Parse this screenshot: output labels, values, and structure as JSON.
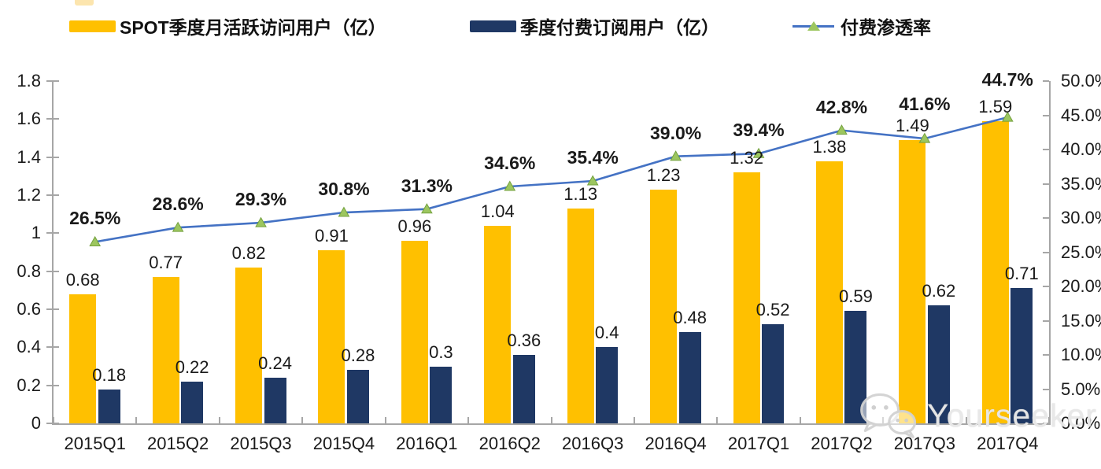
{
  "watermark": {
    "text": "Yourseeker",
    "icon": "wechat-icon"
  },
  "chart_data": {
    "type": "combo-bar-line",
    "title": "",
    "categories": [
      "2015Q1",
      "2015Q2",
      "2015Q3",
      "2015Q4",
      "2016Q1",
      "2016Q2",
      "2016Q3",
      "2016Q4",
      "2017Q1",
      "2017Q2",
      "2017Q3",
      "2017Q4"
    ],
    "series": [
      {
        "name": "SPOT季度月活跃访问用户（亿）",
        "type": "bar",
        "axis": "left",
        "color": "#FFC000",
        "values": [
          0.68,
          0.77,
          0.82,
          0.91,
          0.96,
          1.04,
          1.13,
          1.23,
          1.32,
          1.38,
          1.49,
          1.59
        ],
        "labels": [
          "0.68",
          "0.77",
          "0.82",
          "0.91",
          "0.96",
          "1.04",
          "1.13",
          "1.23",
          "1.32",
          "1.38",
          "1.49",
          "1.59"
        ]
      },
      {
        "name": "季度付费订阅用户（亿）",
        "type": "bar",
        "axis": "left",
        "color": "#1F3864",
        "values": [
          0.18,
          0.22,
          0.24,
          0.28,
          0.3,
          0.36,
          0.4,
          0.48,
          0.52,
          0.59,
          0.62,
          0.71
        ],
        "labels": [
          "0.18",
          "0.22",
          "0.24",
          "0.28",
          "0.3",
          "0.36",
          "0.4",
          "0.48",
          "0.52",
          "0.59",
          "0.62",
          "0.71"
        ]
      },
      {
        "name": "付费渗透率",
        "type": "line",
        "axis": "right",
        "color": "#4472C4",
        "marker": "triangle-up",
        "marker_color": "#9CC65F",
        "marker_edge_color": "#74A13F",
        "values": [
          26.5,
          28.6,
          29.3,
          30.8,
          31.3,
          34.6,
          35.4,
          39.0,
          39.4,
          42.8,
          41.6,
          44.7
        ],
        "labels": [
          "26.5%",
          "28.6%",
          "29.3%",
          "30.8%",
          "31.3%",
          "34.6%",
          "35.4%",
          "39.0%",
          "39.4%",
          "42.8%",
          "41.6%",
          "44.7%"
        ]
      }
    ],
    "left_axis": {
      "min": 0,
      "max": 1.8,
      "step": 0.2,
      "tick_labels": [
        "0",
        "0.2",
        "0.4",
        "0.6",
        "0.8",
        "1",
        "1.2",
        "1.4",
        "1.6",
        "1.8"
      ]
    },
    "right_axis": {
      "min": 0,
      "max": 50,
      "step": 5,
      "tick_labels": [
        "0.0%",
        "5.0%",
        "10.0%",
        "15.0%",
        "20.0%",
        "25.0%",
        "30.0%",
        "35.0%",
        "40.0%",
        "45.0%",
        "50.0%"
      ]
    },
    "grid": false,
    "legend_position": "top",
    "axis_color": "#A6A6A6",
    "text_color": "#1A1A1A"
  }
}
